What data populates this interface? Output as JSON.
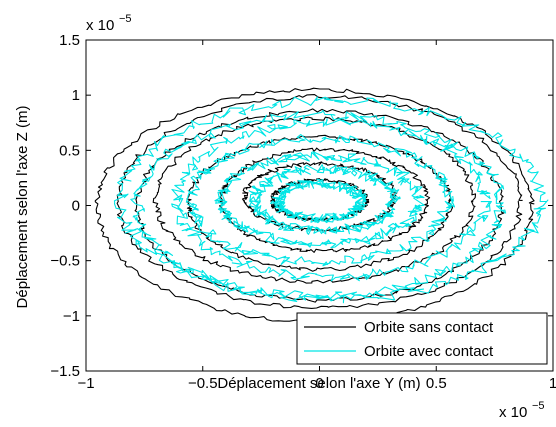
{
  "chart_data": {
    "type": "line",
    "xlabel": "Déplacement selon l'axe Y (m)",
    "ylabel": "Déplacement selon l'axe Z (m)",
    "x_multiplier_label": "x 10",
    "x_multiplier_exp": "−5",
    "y_multiplier_label": "x 10",
    "y_multiplier_exp": "−5",
    "xlim": [
      -1,
      1
    ],
    "ylim": [
      -1.5,
      1.5
    ],
    "xticks": [
      -1,
      -0.5,
      0,
      0.5,
      1
    ],
    "xtick_labels": [
      "−1",
      "−0.5",
      "0",
      "0.5",
      "1"
    ],
    "yticks": [
      -1.5,
      -1,
      -0.5,
      0,
      0.5,
      1,
      1.5
    ],
    "ytick_labels": [
      "−1.5",
      "−1",
      "−0.5",
      "0",
      "0.5",
      "1",
      "1.5"
    ],
    "grid": false,
    "legend_position": "bottom-right",
    "series": [
      {
        "name": "Orbite sans contact",
        "color": "#000000",
        "rings": [
          {
            "rx": 0.93,
            "ry": 1.05,
            "cx": -0.02,
            "cy": 0.0
          },
          {
            "rx": 0.86,
            "ry": 0.96,
            "cx": 0.0,
            "cy": 0.03
          },
          {
            "rx": 0.78,
            "ry": 0.86,
            "cx": 0.0,
            "cy": 0.0
          },
          {
            "rx": 0.68,
            "ry": 0.74,
            "cx": -0.02,
            "cy": 0.05
          },
          {
            "rx": 0.56,
            "ry": 0.6,
            "cx": 0.0,
            "cy": 0.02
          },
          {
            "rx": 0.44,
            "ry": 0.46,
            "cx": 0.02,
            "cy": 0.05
          },
          {
            "rx": 0.32,
            "ry": 0.3,
            "cx": 0.0,
            "cy": 0.08
          },
          {
            "rx": 0.2,
            "ry": 0.18,
            "cx": 0.0,
            "cy": 0.05
          }
        ]
      },
      {
        "name": "Orbite avec contact",
        "color": "#00e5e5",
        "rings": [
          {
            "rx": 0.9,
            "ry": 0.9,
            "cx": 0.05,
            "cy": 0.05
          },
          {
            "rx": 0.78,
            "ry": 0.82,
            "cx": 0.0,
            "cy": 0.0
          },
          {
            "rx": 0.66,
            "ry": 0.7,
            "cx": 0.05,
            "cy": 0.05
          },
          {
            "rx": 0.55,
            "ry": 0.56,
            "cx": 0.0,
            "cy": 0.05
          },
          {
            "rx": 0.42,
            "ry": 0.4,
            "cx": 0.0,
            "cy": 0.05
          },
          {
            "rx": 0.3,
            "ry": 0.28,
            "cx": 0.02,
            "cy": 0.05
          },
          {
            "rx": 0.18,
            "ry": 0.16,
            "cx": 0.0,
            "cy": 0.04
          }
        ]
      }
    ]
  }
}
